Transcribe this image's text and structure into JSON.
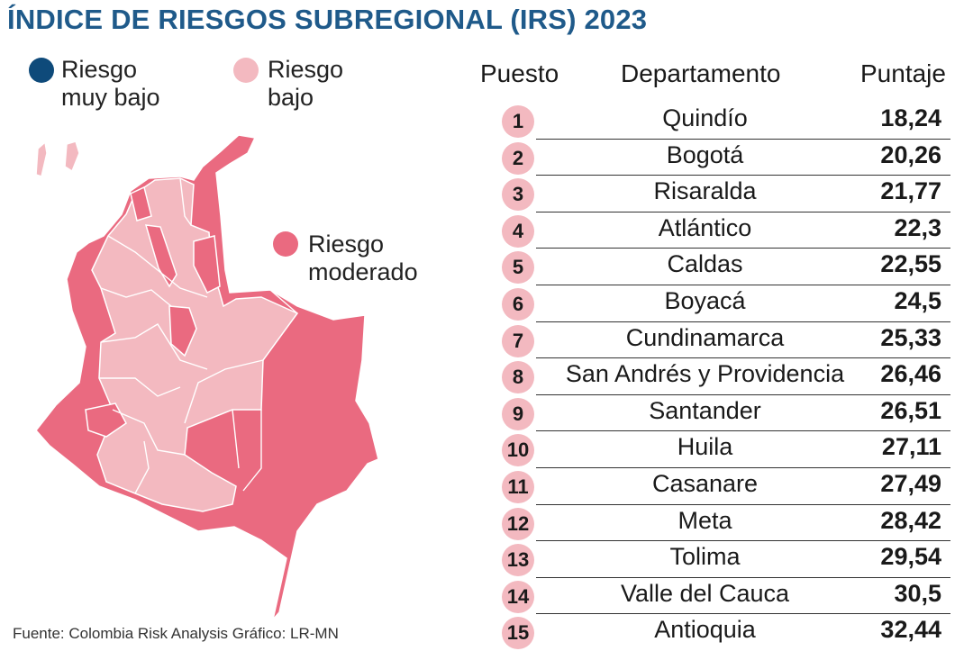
{
  "title": "ÍNDICE DE RIESGOS SUBREGIONAL (IRS) 2023",
  "legend": {
    "very_low": {
      "line1": "Riesgo",
      "line2": "muy bajo",
      "color": "#0e4a7a"
    },
    "low": {
      "line1": "Riesgo",
      "line2": "bajo",
      "color": "#f3b9c0"
    },
    "moderate": {
      "line1": "Riesgo",
      "line2": "moderado",
      "color": "#ea6a80"
    }
  },
  "table": {
    "headers": {
      "rank": "Puesto",
      "department": "Departamento",
      "score": "Puntaje"
    },
    "rows": [
      {
        "rank": "1",
        "department": "Quindío",
        "score": "18,24"
      },
      {
        "rank": "2",
        "department": "Bogotá",
        "score": "20,26"
      },
      {
        "rank": "3",
        "department": "Risaralda",
        "score": "21,77"
      },
      {
        "rank": "4",
        "department": "Atlántico",
        "score": "22,3"
      },
      {
        "rank": "5",
        "department": "Caldas",
        "score": "22,55"
      },
      {
        "rank": "6",
        "department": "Boyacá",
        "score": "24,5"
      },
      {
        "rank": "7",
        "department": "Cundinamarca",
        "score": "25,33"
      },
      {
        "rank": "8",
        "department": "San Andrés y Providencia",
        "score": "26,46"
      },
      {
        "rank": "9",
        "department": "Santander",
        "score": "26,51"
      },
      {
        "rank": "10",
        "department": "Huila",
        "score": "27,11"
      },
      {
        "rank": "11",
        "department": "Casanare",
        "score": "27,49"
      },
      {
        "rank": "12",
        "department": "Meta",
        "score": "28,42"
      },
      {
        "rank": "13",
        "department": "Tolima",
        "score": "29,54"
      },
      {
        "rank": "14",
        "department": "Valle del Cauca",
        "score": "30,5"
      },
      {
        "rank": "15",
        "department": "Antioquia",
        "score": "32,44"
      }
    ]
  },
  "source": "Fuente: Colombia Risk Analysis  Gráfico: LR-MN",
  "colors": {
    "title": "#1f5a8a",
    "badge": "#f3b9c0",
    "moderate": "#ea6a80",
    "low": "#f3b9c0"
  }
}
